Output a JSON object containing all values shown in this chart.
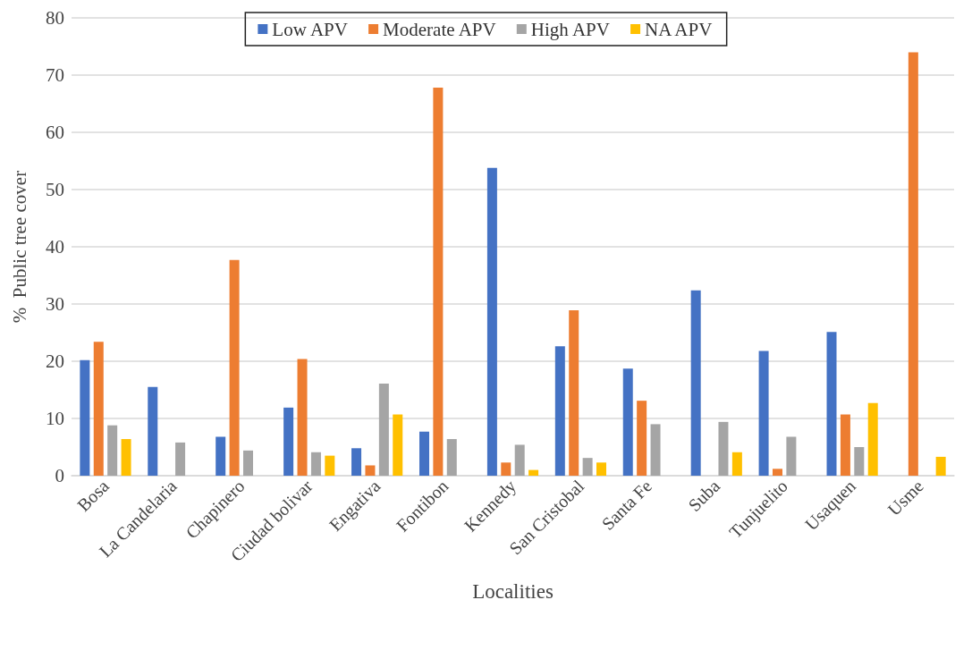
{
  "chart_data": {
    "type": "bar",
    "xlabel": "Localities",
    "ylabel": "%  Public tree cover",
    "categories": [
      "Bosa",
      "La Candelaria",
      "Chapinero",
      "Ciudad bolivar",
      "Engativa",
      "Fontibon",
      "Kennedy",
      "San Cristobal",
      "Santa Fe",
      "Suba",
      "Tunjuelito",
      "Usaquen",
      "Usme"
    ],
    "series": [
      {
        "name": "Low APV",
        "color": "#4472c4",
        "values": [
          20.2,
          15.5,
          6.8,
          11.9,
          4.8,
          7.7,
          53.8,
          22.6,
          18.7,
          32.4,
          21.8,
          25.1,
          null
        ]
      },
      {
        "name": "Moderate APV",
        "color": "#ed7d31",
        "values": [
          23.4,
          null,
          37.7,
          20.4,
          1.8,
          67.8,
          2.3,
          28.9,
          13.1,
          null,
          1.2,
          10.7,
          74
        ]
      },
      {
        "name": "High APV",
        "color": "#a5a5a5",
        "values": [
          8.8,
          5.8,
          4.4,
          4.1,
          16.1,
          6.4,
          5.4,
          3.1,
          9.0,
          9.4,
          6.8,
          5.0,
          null
        ]
      },
      {
        "name": "NA APV",
        "color": "#ffc000",
        "values": [
          6.4,
          null,
          null,
          3.5,
          10.7,
          null,
          1.0,
          2.3,
          null,
          4.1,
          null,
          12.7,
          3.3
        ]
      }
    ],
    "ylim": [
      0,
      80
    ],
    "yticks": [
      0,
      10,
      20,
      30,
      40,
      50,
      60,
      70,
      80
    ],
    "grid": "y",
    "legend": "top"
  }
}
